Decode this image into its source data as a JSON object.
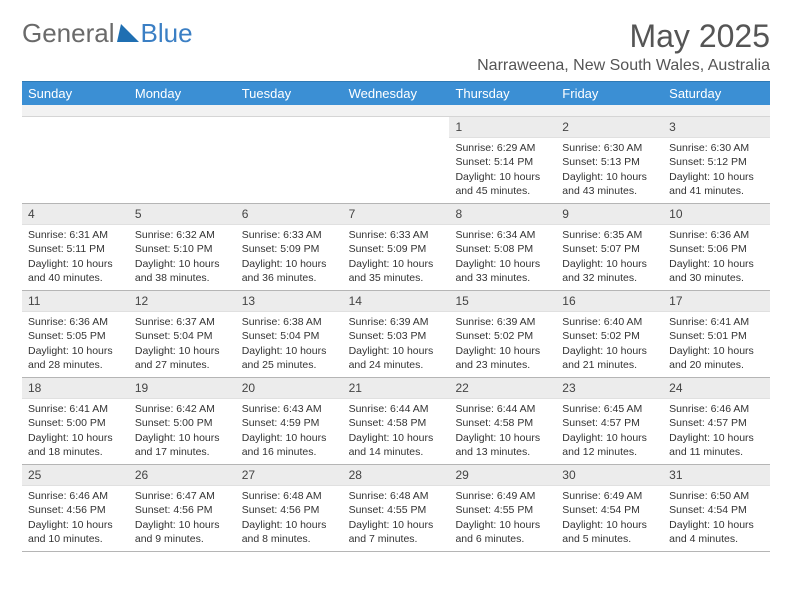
{
  "logo": {
    "general": "General",
    "blue": "Blue"
  },
  "title": "May 2025",
  "location": "Narraweena, New South Wales, Australia",
  "colors": {
    "header_bg": "#3b8fd4",
    "header_fg": "#ffffff",
    "num_bg": "#ececec",
    "border": "#b5b5b5",
    "text": "#333333"
  },
  "weekdays": [
    "Sunday",
    "Monday",
    "Tuesday",
    "Wednesday",
    "Thursday",
    "Friday",
    "Saturday"
  ],
  "weeks": [
    [
      {
        "n": "",
        "sunrise": "",
        "sunset": "",
        "daylight": ""
      },
      {
        "n": "",
        "sunrise": "",
        "sunset": "",
        "daylight": ""
      },
      {
        "n": "",
        "sunrise": "",
        "sunset": "",
        "daylight": ""
      },
      {
        "n": "",
        "sunrise": "",
        "sunset": "",
        "daylight": ""
      },
      {
        "n": "1",
        "sunrise": "Sunrise: 6:29 AM",
        "sunset": "Sunset: 5:14 PM",
        "daylight": "Daylight: 10 hours and 45 minutes."
      },
      {
        "n": "2",
        "sunrise": "Sunrise: 6:30 AM",
        "sunset": "Sunset: 5:13 PM",
        "daylight": "Daylight: 10 hours and 43 minutes."
      },
      {
        "n": "3",
        "sunrise": "Sunrise: 6:30 AM",
        "sunset": "Sunset: 5:12 PM",
        "daylight": "Daylight: 10 hours and 41 minutes."
      }
    ],
    [
      {
        "n": "4",
        "sunrise": "Sunrise: 6:31 AM",
        "sunset": "Sunset: 5:11 PM",
        "daylight": "Daylight: 10 hours and 40 minutes."
      },
      {
        "n": "5",
        "sunrise": "Sunrise: 6:32 AM",
        "sunset": "Sunset: 5:10 PM",
        "daylight": "Daylight: 10 hours and 38 minutes."
      },
      {
        "n": "6",
        "sunrise": "Sunrise: 6:33 AM",
        "sunset": "Sunset: 5:09 PM",
        "daylight": "Daylight: 10 hours and 36 minutes."
      },
      {
        "n": "7",
        "sunrise": "Sunrise: 6:33 AM",
        "sunset": "Sunset: 5:09 PM",
        "daylight": "Daylight: 10 hours and 35 minutes."
      },
      {
        "n": "8",
        "sunrise": "Sunrise: 6:34 AM",
        "sunset": "Sunset: 5:08 PM",
        "daylight": "Daylight: 10 hours and 33 minutes."
      },
      {
        "n": "9",
        "sunrise": "Sunrise: 6:35 AM",
        "sunset": "Sunset: 5:07 PM",
        "daylight": "Daylight: 10 hours and 32 minutes."
      },
      {
        "n": "10",
        "sunrise": "Sunrise: 6:36 AM",
        "sunset": "Sunset: 5:06 PM",
        "daylight": "Daylight: 10 hours and 30 minutes."
      }
    ],
    [
      {
        "n": "11",
        "sunrise": "Sunrise: 6:36 AM",
        "sunset": "Sunset: 5:05 PM",
        "daylight": "Daylight: 10 hours and 28 minutes."
      },
      {
        "n": "12",
        "sunrise": "Sunrise: 6:37 AM",
        "sunset": "Sunset: 5:04 PM",
        "daylight": "Daylight: 10 hours and 27 minutes."
      },
      {
        "n": "13",
        "sunrise": "Sunrise: 6:38 AM",
        "sunset": "Sunset: 5:04 PM",
        "daylight": "Daylight: 10 hours and 25 minutes."
      },
      {
        "n": "14",
        "sunrise": "Sunrise: 6:39 AM",
        "sunset": "Sunset: 5:03 PM",
        "daylight": "Daylight: 10 hours and 24 minutes."
      },
      {
        "n": "15",
        "sunrise": "Sunrise: 6:39 AM",
        "sunset": "Sunset: 5:02 PM",
        "daylight": "Daylight: 10 hours and 23 minutes."
      },
      {
        "n": "16",
        "sunrise": "Sunrise: 6:40 AM",
        "sunset": "Sunset: 5:02 PM",
        "daylight": "Daylight: 10 hours and 21 minutes."
      },
      {
        "n": "17",
        "sunrise": "Sunrise: 6:41 AM",
        "sunset": "Sunset: 5:01 PM",
        "daylight": "Daylight: 10 hours and 20 minutes."
      }
    ],
    [
      {
        "n": "18",
        "sunrise": "Sunrise: 6:41 AM",
        "sunset": "Sunset: 5:00 PM",
        "daylight": "Daylight: 10 hours and 18 minutes."
      },
      {
        "n": "19",
        "sunrise": "Sunrise: 6:42 AM",
        "sunset": "Sunset: 5:00 PM",
        "daylight": "Daylight: 10 hours and 17 minutes."
      },
      {
        "n": "20",
        "sunrise": "Sunrise: 6:43 AM",
        "sunset": "Sunset: 4:59 PM",
        "daylight": "Daylight: 10 hours and 16 minutes."
      },
      {
        "n": "21",
        "sunrise": "Sunrise: 6:44 AM",
        "sunset": "Sunset: 4:58 PM",
        "daylight": "Daylight: 10 hours and 14 minutes."
      },
      {
        "n": "22",
        "sunrise": "Sunrise: 6:44 AM",
        "sunset": "Sunset: 4:58 PM",
        "daylight": "Daylight: 10 hours and 13 minutes."
      },
      {
        "n": "23",
        "sunrise": "Sunrise: 6:45 AM",
        "sunset": "Sunset: 4:57 PM",
        "daylight": "Daylight: 10 hours and 12 minutes."
      },
      {
        "n": "24",
        "sunrise": "Sunrise: 6:46 AM",
        "sunset": "Sunset: 4:57 PM",
        "daylight": "Daylight: 10 hours and 11 minutes."
      }
    ],
    [
      {
        "n": "25",
        "sunrise": "Sunrise: 6:46 AM",
        "sunset": "Sunset: 4:56 PM",
        "daylight": "Daylight: 10 hours and 10 minutes."
      },
      {
        "n": "26",
        "sunrise": "Sunrise: 6:47 AM",
        "sunset": "Sunset: 4:56 PM",
        "daylight": "Daylight: 10 hours and 9 minutes."
      },
      {
        "n": "27",
        "sunrise": "Sunrise: 6:48 AM",
        "sunset": "Sunset: 4:56 PM",
        "daylight": "Daylight: 10 hours and 8 minutes."
      },
      {
        "n": "28",
        "sunrise": "Sunrise: 6:48 AM",
        "sunset": "Sunset: 4:55 PM",
        "daylight": "Daylight: 10 hours and 7 minutes."
      },
      {
        "n": "29",
        "sunrise": "Sunrise: 6:49 AM",
        "sunset": "Sunset: 4:55 PM",
        "daylight": "Daylight: 10 hours and 6 minutes."
      },
      {
        "n": "30",
        "sunrise": "Sunrise: 6:49 AM",
        "sunset": "Sunset: 4:54 PM",
        "daylight": "Daylight: 10 hours and 5 minutes."
      },
      {
        "n": "31",
        "sunrise": "Sunrise: 6:50 AM",
        "sunset": "Sunset: 4:54 PM",
        "daylight": "Daylight: 10 hours and 4 minutes."
      }
    ]
  ]
}
